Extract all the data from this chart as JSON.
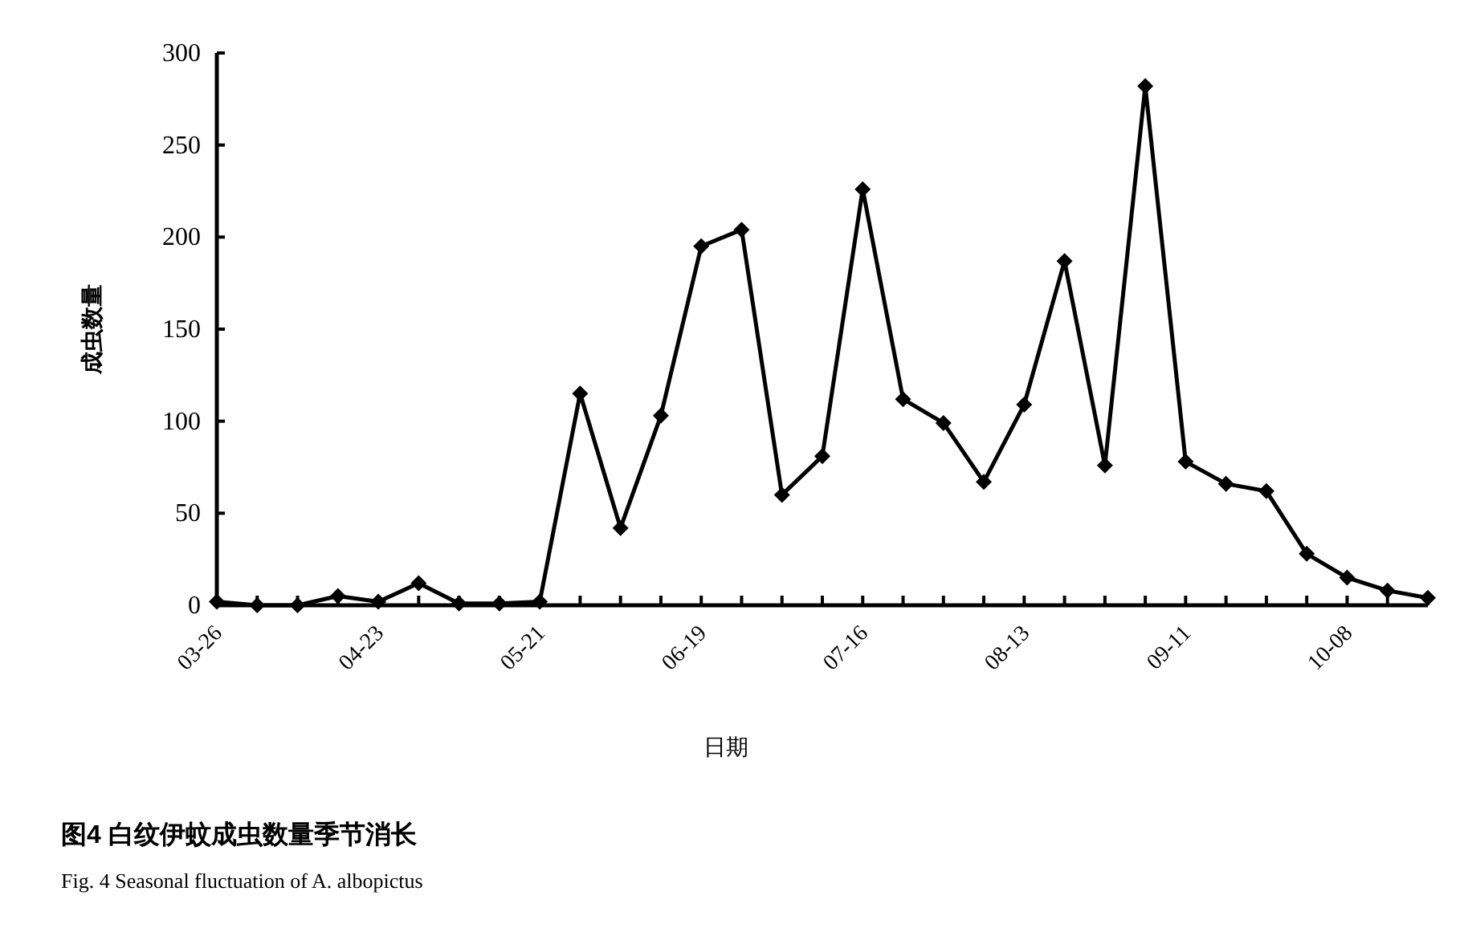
{
  "chart_data": {
    "type": "line",
    "xlabel": "日期",
    "ylabel": "成虫数量",
    "categories": [
      "03-26",
      null,
      null,
      null,
      "04-23",
      null,
      null,
      null,
      "05-21",
      null,
      null,
      null,
      "06-19",
      null,
      null,
      null,
      "07-16",
      null,
      null,
      null,
      "08-13",
      null,
      null,
      null,
      "09-11",
      null,
      null,
      null,
      "10-08",
      null,
      null
    ],
    "series": [
      {
        "color": "#000000",
        "values": [
          2,
          0,
          0,
          5,
          2,
          12,
          1,
          1,
          2,
          115,
          42,
          103,
          195,
          204,
          60,
          81,
          226,
          112,
          99,
          67,
          109,
          187,
          76,
          282,
          78,
          66,
          62,
          28,
          15,
          8,
          4
        ]
      }
    ],
    "ylim": [
      0,
      300
    ],
    "yticks": [
      0,
      50,
      100,
      150,
      200,
      250,
      300
    ],
    "marker": "diamond",
    "line_style": "solid",
    "annotations": [
      "图4  白纹伊蚊成虫数量季节消长",
      "Fig. 4  Seasonal fluctuation of A. albopictus"
    ]
  }
}
